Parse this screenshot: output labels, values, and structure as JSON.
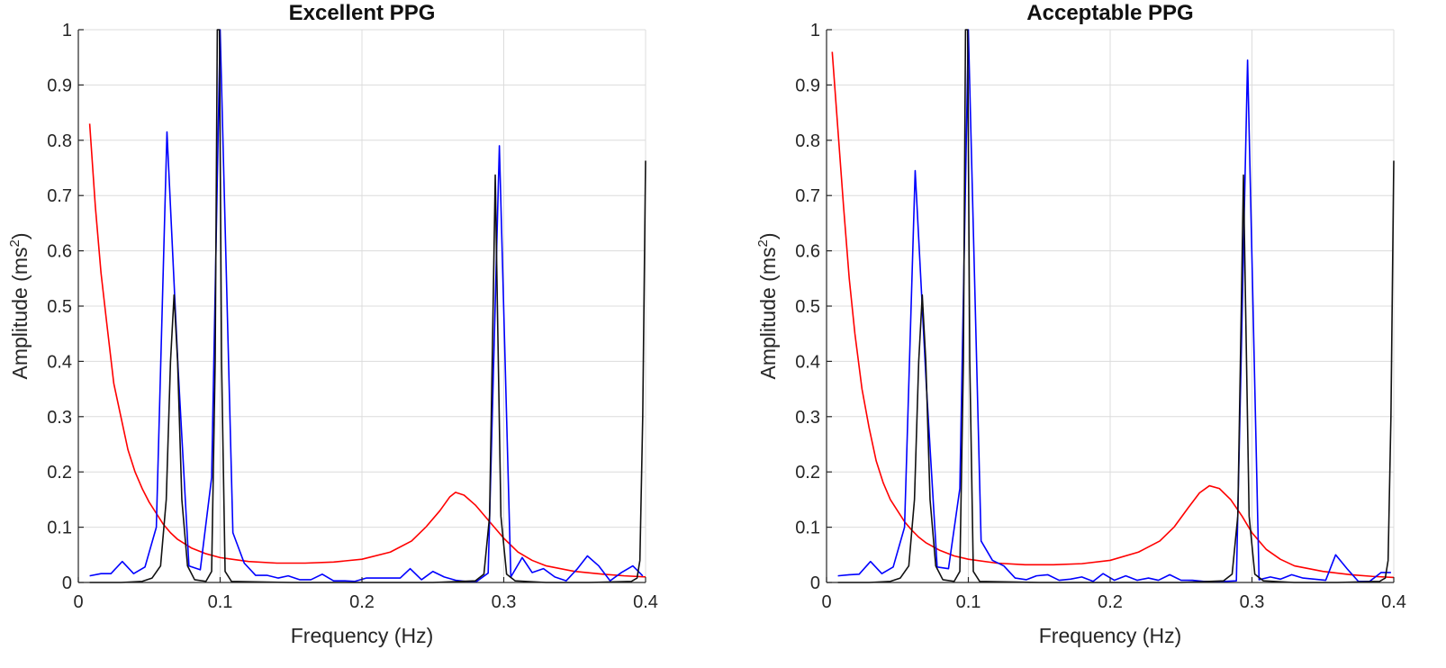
{
  "chart_data": [
    {
      "type": "line",
      "title": "Excellent PPG",
      "xlabel": "Frequency (Hz)",
      "ylabel_main": "Amplitude (ms",
      "ylabel_sup": "2",
      "ylabel_close": ")",
      "xlim": [
        0,
        0.4
      ],
      "ylim": [
        0,
        1
      ],
      "xticks": [
        "0",
        "0.1",
        "0.2",
        "0.3",
        "0.4"
      ],
      "yticks": [
        "0",
        "0.1",
        "0.2",
        "0.3",
        "0.4",
        "0.5",
        "0.6",
        "0.7",
        "0.8",
        "0.9",
        "1"
      ],
      "grid": true,
      "series": [
        {
          "name": "red",
          "color": "#ff0000",
          "points": [
            [
              0.008,
              0.83
            ],
            [
              0.012,
              0.68
            ],
            [
              0.016,
              0.56
            ],
            [
              0.02,
              0.47
            ],
            [
              0.025,
              0.36
            ],
            [
              0.03,
              0.3
            ],
            [
              0.035,
              0.24
            ],
            [
              0.04,
              0.2
            ],
            [
              0.045,
              0.17
            ],
            [
              0.05,
              0.145
            ],
            [
              0.055,
              0.125
            ],
            [
              0.06,
              0.105
            ],
            [
              0.065,
              0.09
            ],
            [
              0.07,
              0.078
            ],
            [
              0.08,
              0.062
            ],
            [
              0.09,
              0.052
            ],
            [
              0.1,
              0.045
            ],
            [
              0.12,
              0.038
            ],
            [
              0.14,
              0.035
            ],
            [
              0.16,
              0.035
            ],
            [
              0.18,
              0.037
            ],
            [
              0.2,
              0.042
            ],
            [
              0.22,
              0.055
            ],
            [
              0.235,
              0.075
            ],
            [
              0.245,
              0.1
            ],
            [
              0.255,
              0.13
            ],
            [
              0.262,
              0.155
            ],
            [
              0.266,
              0.163
            ],
            [
              0.272,
              0.158
            ],
            [
              0.28,
              0.14
            ],
            [
              0.29,
              0.11
            ],
            [
              0.3,
              0.08
            ],
            [
              0.31,
              0.055
            ],
            [
              0.32,
              0.04
            ],
            [
              0.33,
              0.03
            ],
            [
              0.35,
              0.02
            ],
            [
              0.37,
              0.015
            ],
            [
              0.385,
              0.012
            ],
            [
              0.4,
              0.01
            ]
          ]
        },
        {
          "name": "blue",
          "color": "#0000ff",
          "points": [
            [
              0.008,
              0.012
            ],
            [
              0.016,
              0.016
            ],
            [
              0.023,
              0.016
            ],
            [
              0.031,
              0.038
            ],
            [
              0.039,
              0.016
            ],
            [
              0.047,
              0.028
            ],
            [
              0.055,
              0.1
            ],
            [
              0.0625,
              0.815
            ],
            [
              0.0703,
              0.39
            ],
            [
              0.078,
              0.03
            ],
            [
              0.086,
              0.023
            ],
            [
              0.094,
              0.19
            ],
            [
              0.1,
              1.0
            ],
            [
              0.109,
              0.09
            ],
            [
              0.117,
              0.035
            ],
            [
              0.125,
              0.013
            ],
            [
              0.133,
              0.013
            ],
            [
              0.141,
              0.008
            ],
            [
              0.148,
              0.012
            ],
            [
              0.156,
              0.005
            ],
            [
              0.164,
              0.005
            ],
            [
              0.172,
              0.015
            ],
            [
              0.18,
              0.003
            ],
            [
              0.188,
              0.003
            ],
            [
              0.195,
              0.002
            ],
            [
              0.203,
              0.008
            ],
            [
              0.211,
              0.008
            ],
            [
              0.219,
              0.008
            ],
            [
              0.227,
              0.008
            ],
            [
              0.234,
              0.025
            ],
            [
              0.242,
              0.005
            ],
            [
              0.25,
              0.02
            ],
            [
              0.258,
              0.01
            ],
            [
              0.266,
              0.004
            ],
            [
              0.273,
              0.002
            ],
            [
              0.281,
              0.002
            ],
            [
              0.289,
              0.017
            ],
            [
              0.2969,
              0.79
            ],
            [
              0.305,
              0.01
            ],
            [
              0.313,
              0.045
            ],
            [
              0.32,
              0.018
            ],
            [
              0.328,
              0.025
            ],
            [
              0.336,
              0.01
            ],
            [
              0.344,
              0.003
            ],
            [
              0.352,
              0.025
            ],
            [
              0.359,
              0.048
            ],
            [
              0.367,
              0.03
            ],
            [
              0.375,
              0.003
            ],
            [
              0.383,
              0.018
            ],
            [
              0.391,
              0.03
            ],
            [
              0.398,
              0.012
            ]
          ]
        },
        {
          "name": "black",
          "color": "#111111",
          "points": [
            [
              0.008,
              0.0
            ],
            [
              0.03,
              0.0
            ],
            [
              0.045,
              0.002
            ],
            [
              0.052,
              0.008
            ],
            [
              0.058,
              0.03
            ],
            [
              0.062,
              0.15
            ],
            [
              0.065,
              0.4
            ],
            [
              0.0675,
              0.52
            ],
            [
              0.07,
              0.4
            ],
            [
              0.073,
              0.15
            ],
            [
              0.077,
              0.03
            ],
            [
              0.082,
              0.005
            ],
            [
              0.09,
              0.002
            ],
            [
              0.094,
              0.02
            ],
            [
              0.0965,
              0.4
            ],
            [
              0.098,
              1.0
            ],
            [
              0.0995,
              1.0
            ],
            [
              0.101,
              0.4
            ],
            [
              0.1035,
              0.02
            ],
            [
              0.108,
              0.002
            ],
            [
              0.15,
              0.0
            ],
            [
              0.2,
              0.0
            ],
            [
              0.25,
              0.0
            ],
            [
              0.28,
              0.003
            ],
            [
              0.286,
              0.015
            ],
            [
              0.29,
              0.12
            ],
            [
              0.2925,
              0.5
            ],
            [
              0.294,
              0.737
            ],
            [
              0.2955,
              0.5
            ],
            [
              0.298,
              0.12
            ],
            [
              0.302,
              0.015
            ],
            [
              0.308,
              0.003
            ],
            [
              0.33,
              0.0
            ],
            [
              0.36,
              0.0
            ],
            [
              0.39,
              0.002
            ],
            [
              0.394,
              0.008
            ],
            [
              0.396,
              0.04
            ],
            [
              0.398,
              0.3
            ],
            [
              0.4,
              0.763
            ]
          ]
        }
      ]
    },
    {
      "type": "line",
      "title": "Acceptable PPG",
      "xlabel": "Frequency (Hz)",
      "ylabel_main": "Amplitude (ms",
      "ylabel_sup": "2",
      "ylabel_close": ")",
      "xlim": [
        0,
        0.4
      ],
      "ylim": [
        0,
        1
      ],
      "xticks": [
        "0",
        "0.1",
        "0.2",
        "0.3",
        "0.4"
      ],
      "yticks": [
        "0",
        "0.1",
        "0.2",
        "0.3",
        "0.4",
        "0.5",
        "0.6",
        "0.7",
        "0.8",
        "0.9",
        "1"
      ],
      "grid": true,
      "series": [
        {
          "name": "red",
          "color": "#ff0000",
          "points": [
            [
              0.004,
              0.96
            ],
            [
              0.008,
              0.82
            ],
            [
              0.012,
              0.68
            ],
            [
              0.016,
              0.55
            ],
            [
              0.02,
              0.45
            ],
            [
              0.025,
              0.35
            ],
            [
              0.03,
              0.28
            ],
            [
              0.035,
              0.22
            ],
            [
              0.04,
              0.18
            ],
            [
              0.045,
              0.15
            ],
            [
              0.05,
              0.13
            ],
            [
              0.055,
              0.11
            ],
            [
              0.06,
              0.095
            ],
            [
              0.065,
              0.082
            ],
            [
              0.07,
              0.072
            ],
            [
              0.08,
              0.058
            ],
            [
              0.09,
              0.048
            ],
            [
              0.1,
              0.042
            ],
            [
              0.12,
              0.035
            ],
            [
              0.14,
              0.032
            ],
            [
              0.16,
              0.032
            ],
            [
              0.18,
              0.034
            ],
            [
              0.2,
              0.04
            ],
            [
              0.22,
              0.055
            ],
            [
              0.235,
              0.075
            ],
            [
              0.245,
              0.1
            ],
            [
              0.255,
              0.135
            ],
            [
              0.263,
              0.162
            ],
            [
              0.27,
              0.175
            ],
            [
              0.277,
              0.17
            ],
            [
              0.285,
              0.15
            ],
            [
              0.293,
              0.12
            ],
            [
              0.3,
              0.09
            ],
            [
              0.31,
              0.06
            ],
            [
              0.32,
              0.042
            ],
            [
              0.33,
              0.03
            ],
            [
              0.35,
              0.02
            ],
            [
              0.37,
              0.014
            ],
            [
              0.385,
              0.011
            ],
            [
              0.4,
              0.009
            ]
          ]
        },
        {
          "name": "blue",
          "color": "#0000ff",
          "points": [
            [
              0.008,
              0.012
            ],
            [
              0.016,
              0.014
            ],
            [
              0.023,
              0.015
            ],
            [
              0.031,
              0.038
            ],
            [
              0.039,
              0.016
            ],
            [
              0.047,
              0.028
            ],
            [
              0.055,
              0.1
            ],
            [
              0.0625,
              0.745
            ],
            [
              0.0703,
              0.36
            ],
            [
              0.078,
              0.028
            ],
            [
              0.086,
              0.025
            ],
            [
              0.094,
              0.17
            ],
            [
              0.1,
              1.0
            ],
            [
              0.109,
              0.075
            ],
            [
              0.117,
              0.04
            ],
            [
              0.125,
              0.03
            ],
            [
              0.133,
              0.008
            ],
            [
              0.141,
              0.005
            ],
            [
              0.148,
              0.012
            ],
            [
              0.156,
              0.014
            ],
            [
              0.164,
              0.004
            ],
            [
              0.172,
              0.006
            ],
            [
              0.18,
              0.01
            ],
            [
              0.188,
              0.002
            ],
            [
              0.195,
              0.016
            ],
            [
              0.203,
              0.004
            ],
            [
              0.211,
              0.012
            ],
            [
              0.219,
              0.004
            ],
            [
              0.227,
              0.008
            ],
            [
              0.234,
              0.004
            ],
            [
              0.242,
              0.014
            ],
            [
              0.25,
              0.004
            ],
            [
              0.258,
              0.004
            ],
            [
              0.266,
              0.002
            ],
            [
              0.273,
              0.002
            ],
            [
              0.281,
              0.002
            ],
            [
              0.289,
              0.003
            ],
            [
              0.2969,
              0.945
            ],
            [
              0.305,
              0.005
            ],
            [
              0.313,
              0.01
            ],
            [
              0.32,
              0.006
            ],
            [
              0.328,
              0.014
            ],
            [
              0.336,
              0.008
            ],
            [
              0.344,
              0.006
            ],
            [
              0.352,
              0.004
            ],
            [
              0.359,
              0.05
            ],
            [
              0.367,
              0.025
            ],
            [
              0.375,
              0.002
            ],
            [
              0.383,
              0.002
            ],
            [
              0.391,
              0.018
            ],
            [
              0.398,
              0.018
            ]
          ]
        },
        {
          "name": "black",
          "color": "#111111",
          "points": [
            [
              0.008,
              0.0
            ],
            [
              0.03,
              0.0
            ],
            [
              0.045,
              0.002
            ],
            [
              0.052,
              0.008
            ],
            [
              0.058,
              0.03
            ],
            [
              0.062,
              0.15
            ],
            [
              0.065,
              0.4
            ],
            [
              0.0675,
              0.52
            ],
            [
              0.07,
              0.4
            ],
            [
              0.073,
              0.15
            ],
            [
              0.077,
              0.03
            ],
            [
              0.082,
              0.005
            ],
            [
              0.09,
              0.002
            ],
            [
              0.094,
              0.02
            ],
            [
              0.0965,
              0.4
            ],
            [
              0.098,
              1.0
            ],
            [
              0.0995,
              1.0
            ],
            [
              0.101,
              0.4
            ],
            [
              0.1035,
              0.02
            ],
            [
              0.108,
              0.002
            ],
            [
              0.15,
              0.0
            ],
            [
              0.2,
              0.0
            ],
            [
              0.25,
              0.0
            ],
            [
              0.28,
              0.003
            ],
            [
              0.286,
              0.015
            ],
            [
              0.29,
              0.12
            ],
            [
              0.2925,
              0.5
            ],
            [
              0.294,
              0.737
            ],
            [
              0.2955,
              0.5
            ],
            [
              0.298,
              0.12
            ],
            [
              0.302,
              0.015
            ],
            [
              0.308,
              0.003
            ],
            [
              0.33,
              0.0
            ],
            [
              0.36,
              0.0
            ],
            [
              0.39,
              0.002
            ],
            [
              0.394,
              0.008
            ],
            [
              0.396,
              0.04
            ],
            [
              0.398,
              0.3
            ],
            [
              0.4,
              0.763
            ]
          ]
        }
      ]
    }
  ]
}
